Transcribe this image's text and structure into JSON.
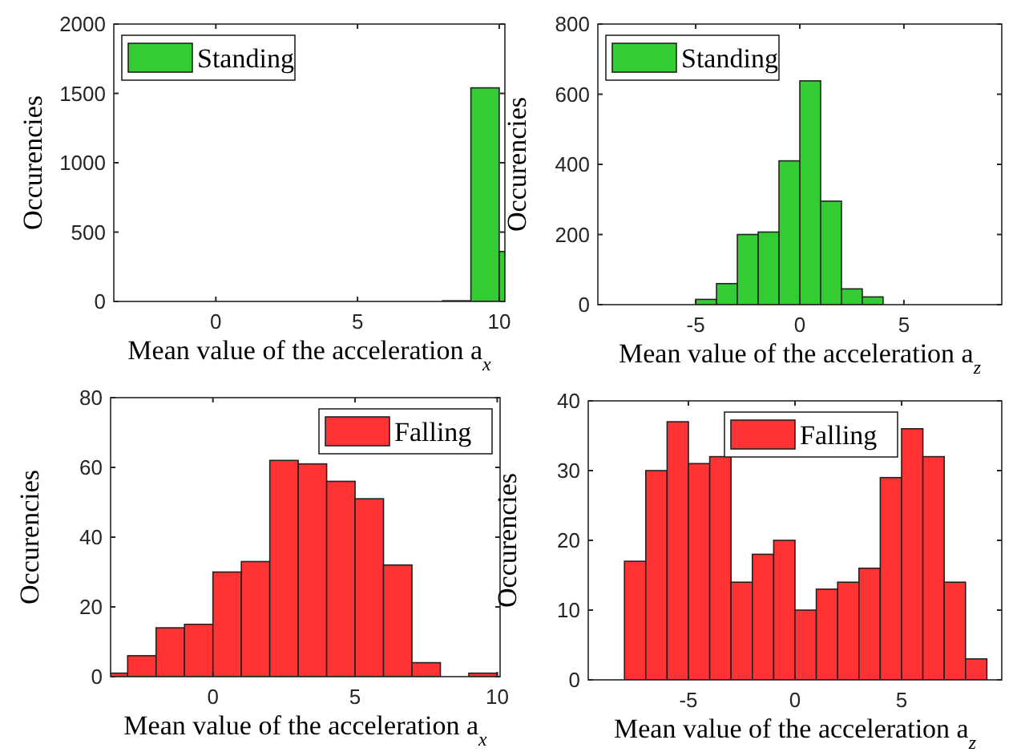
{
  "chart_data": [
    {
      "type": "histogram",
      "xlabel": "Mean value of the acceleration a$_{x}$",
      "ylabel": "Occurencies",
      "xlim": [
        -3.6,
        10.2
      ],
      "xticks": [
        0,
        5,
        10
      ],
      "ylim": [
        0,
        2000
      ],
      "yticks": [
        0,
        500,
        1000,
        1500,
        2000
      ],
      "legend": "top left",
      "bins": [
        8,
        9,
        10,
        10.2
      ],
      "series": [
        {
          "name": "Standing",
          "color": "#33cc33",
          "values": [
            5,
            1540,
            360
          ]
        }
      ]
    },
    {
      "type": "histogram",
      "xlabel": "Mean value of the acceleration a$_{z}$",
      "ylabel": "Occurencies",
      "xlim": [
        -9.7,
        9.7
      ],
      "xticks": [
        -5,
        0,
        5
      ],
      "ylim": [
        0,
        800
      ],
      "yticks": [
        0,
        200,
        400,
        600,
        800
      ],
      "legend": "top left",
      "bins": [
        -5,
        -4,
        -3,
        -2,
        -1,
        0,
        1,
        2,
        3,
        4
      ],
      "series": [
        {
          "name": "Standing",
          "color": "#33cc33",
          "values": [
            15,
            60,
            200,
            207,
            410,
            638,
            295,
            45,
            22
          ]
        }
      ]
    },
    {
      "type": "histogram",
      "xlabel": "Mean value of the acceleration a$_{x}$",
      "ylabel": "Occurencies",
      "xlim": [
        -3.6,
        10.1
      ],
      "xticks": [
        0,
        5,
        10
      ],
      "ylim": [
        0,
        80
      ],
      "yticks": [
        0,
        20,
        40,
        60,
        80
      ],
      "legend": "top right",
      "bins": [
        -3.6,
        -3,
        -2,
        -1,
        0,
        1,
        2,
        3,
        4,
        5,
        6,
        7,
        8,
        9,
        10
      ],
      "series": [
        {
          "name": "Falling",
          "color": "#ff3333",
          "values": [
            1,
            6,
            14,
            15,
            30,
            33,
            62,
            61,
            56,
            51,
            32,
            4,
            0,
            1
          ]
        }
      ]
    },
    {
      "type": "histogram",
      "xlabel": "Mean value of the acceleration a$_{z}$",
      "ylabel": "Occurencies",
      "xlim": [
        -9.7,
        9.7
      ],
      "xticks": [
        -5,
        0,
        5
      ],
      "ylim": [
        0,
        40
      ],
      "yticks": [
        0,
        10,
        20,
        30,
        40
      ],
      "legend": "top",
      "bins": [
        -8,
        -7,
        -6,
        -5,
        -4,
        -3,
        -2,
        -1,
        0,
        1,
        2,
        3,
        4,
        5,
        6,
        7,
        8,
        9
      ],
      "series": [
        {
          "name": "Falling",
          "color": "#ff3333",
          "values": [
            17,
            30,
            37,
            31,
            32,
            14,
            18,
            20,
            10,
            13,
            14,
            16,
            29,
            36,
            32,
            14,
            3
          ]
        }
      ]
    }
  ]
}
